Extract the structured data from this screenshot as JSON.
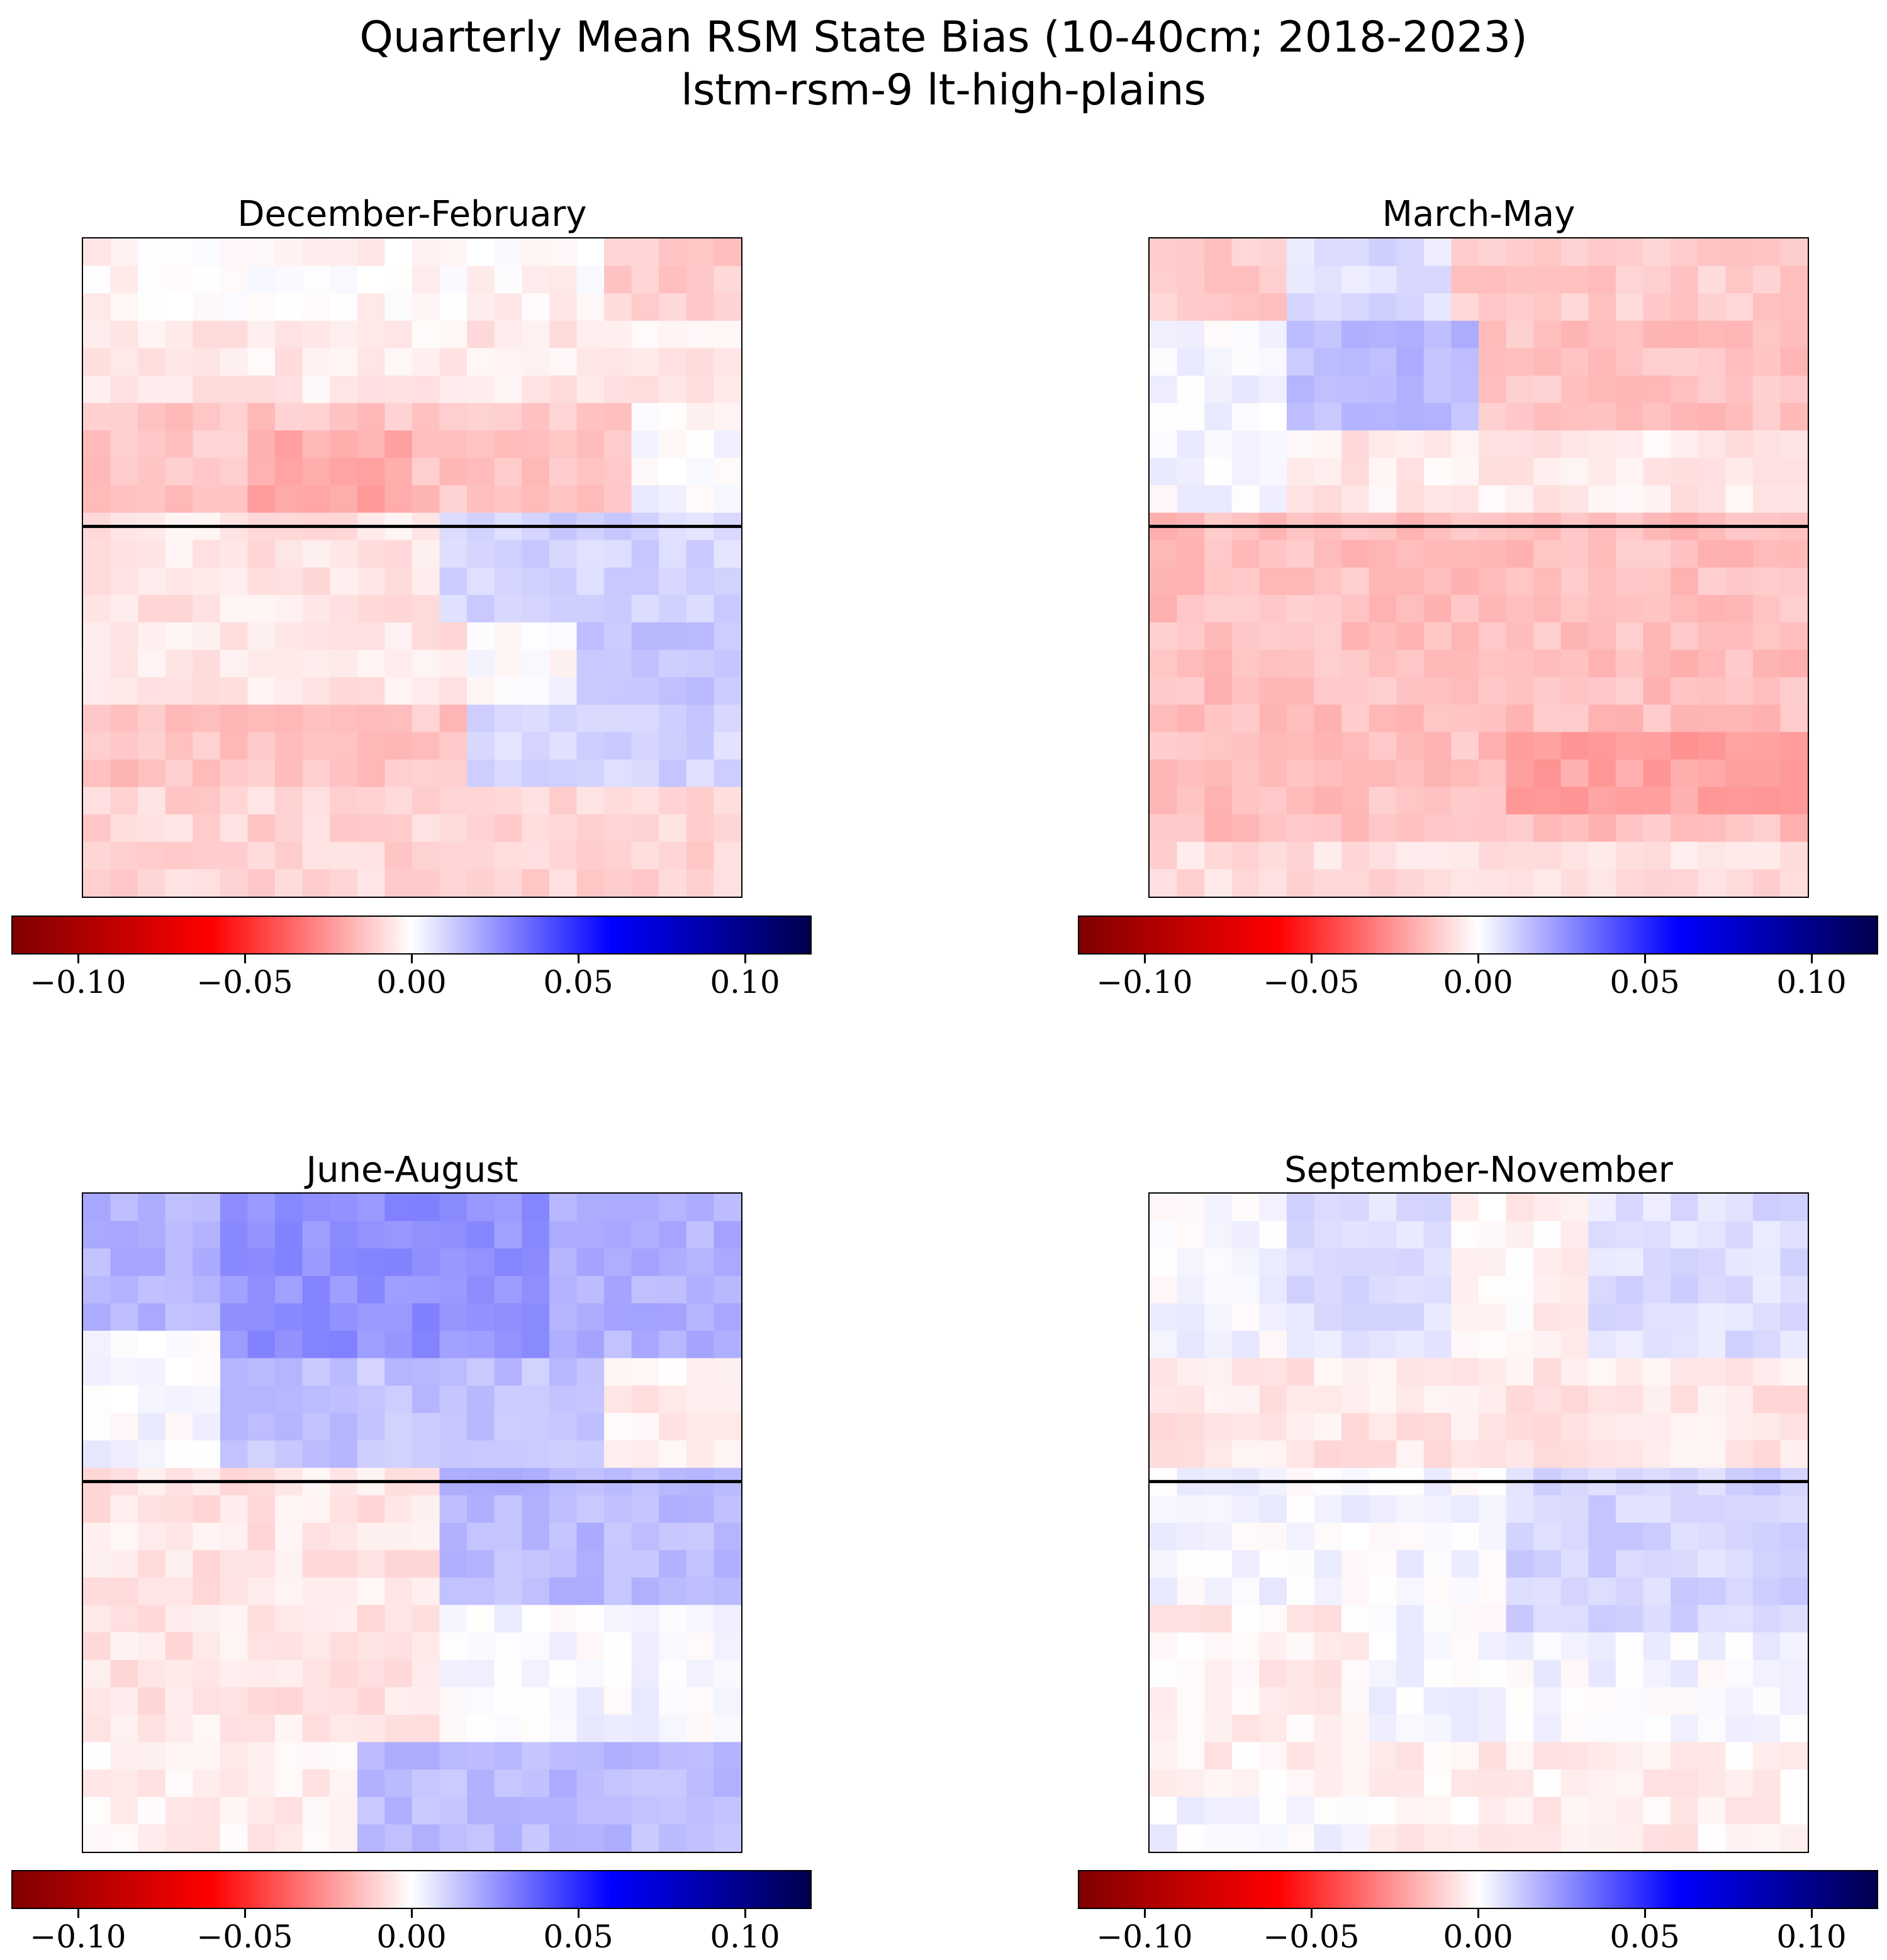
{
  "figure": {
    "title_line1": "Quarterly Mean RSM State Bias (10-40cm; 2018-2023)",
    "title_line2": "lstm-rsm-9 lt-high-plains"
  },
  "colormap": {
    "name": "seismic_r",
    "vmin": -0.12,
    "vmax": 0.12,
    "stops": [
      "#7f0000",
      "#ff0000",
      "#ffffff",
      "#0000ff",
      "#00004d"
    ],
    "divider_line_color": "#000000"
  },
  "colorbar_ticks": [
    "−0.10",
    "−0.05",
    "0.00",
    "0.05",
    "0.10"
  ],
  "colorbar_tick_values": [
    -0.1,
    -0.05,
    0.0,
    0.05,
    0.1
  ],
  "chart_data": [
    {
      "type": "heatmap",
      "title": "December-February",
      "zlim": [
        -0.12,
        0.12
      ],
      "grid": false,
      "nx": 24,
      "ny": 24,
      "divider_row": 10.5,
      "regions": [
        {
          "x": [
            0,
            24
          ],
          "y": [
            0,
            3
          ],
          "value": -0.002
        },
        {
          "x": [
            19,
            24
          ],
          "y": [
            0,
            3
          ],
          "value": -0.012
        },
        {
          "x": [
            0,
            24
          ],
          "y": [
            3,
            6
          ],
          "value": -0.005
        },
        {
          "x": [
            0,
            20
          ],
          "y": [
            6,
            10.5
          ],
          "value": -0.014
        },
        {
          "x": [
            6,
            12
          ],
          "y": [
            7,
            10.5
          ],
          "value": -0.02
        },
        {
          "x": [
            20,
            24
          ],
          "y": [
            8,
            10.5
          ],
          "value": 0.002
        },
        {
          "x": [
            0,
            14
          ],
          "y": [
            10.5,
            17
          ],
          "value": -0.006
        },
        {
          "x": [
            13,
            24
          ],
          "y": [
            10.5,
            14
          ],
          "value": 0.01
        },
        {
          "x": [
            18,
            24
          ],
          "y": [
            14,
            17
          ],
          "value": 0.014
        },
        {
          "x": [
            0,
            14
          ],
          "y": [
            17,
            20
          ],
          "value": -0.014
        },
        {
          "x": [
            14,
            24
          ],
          "y": [
            17,
            20
          ],
          "value": 0.01
        },
        {
          "x": [
            0,
            24
          ],
          "y": [
            20,
            24
          ],
          "value": -0.01
        }
      ]
    },
    {
      "type": "heatmap",
      "title": "March-May",
      "zlim": [
        -0.12,
        0.12
      ],
      "grid": false,
      "nx": 24,
      "ny": 24,
      "divider_row": 10.5,
      "regions": [
        {
          "x": [
            0,
            24
          ],
          "y": [
            0,
            3
          ],
          "value": -0.012
        },
        {
          "x": [
            5,
            11
          ],
          "y": [
            0,
            3
          ],
          "value": 0.008
        },
        {
          "x": [
            0,
            5
          ],
          "y": [
            3,
            10.5
          ],
          "value": 0.002
        },
        {
          "x": [
            5,
            12
          ],
          "y": [
            3,
            7
          ],
          "value": 0.016
        },
        {
          "x": [
            12,
            24
          ],
          "y": [
            3,
            8
          ],
          "value": -0.014
        },
        {
          "x": [
            5,
            24
          ],
          "y": [
            7,
            10.5
          ],
          "value": -0.005
        },
        {
          "x": [
            0,
            24
          ],
          "y": [
            10.5,
            24
          ],
          "value": -0.015
        },
        {
          "x": [
            13,
            24
          ],
          "y": [
            18,
            21
          ],
          "value": -0.022
        },
        {
          "x": [
            0,
            24
          ],
          "y": [
            22,
            24
          ],
          "value": -0.008
        }
      ]
    },
    {
      "type": "heatmap",
      "title": "June-August",
      "zlim": [
        -0.12,
        0.12
      ],
      "grid": false,
      "nx": 24,
      "ny": 24,
      "divider_row": 10.5,
      "regions": [
        {
          "x": [
            0,
            24
          ],
          "y": [
            0,
            6
          ],
          "value": 0.018
        },
        {
          "x": [
            5,
            17
          ],
          "y": [
            0,
            6
          ],
          "value": 0.026
        },
        {
          "x": [
            0,
            5
          ],
          "y": [
            5,
            10.5
          ],
          "value": 0.002
        },
        {
          "x": [
            5,
            19
          ],
          "y": [
            6,
            10.5
          ],
          "value": 0.014
        },
        {
          "x": [
            19,
            24
          ],
          "y": [
            6,
            10.5
          ],
          "value": -0.004
        },
        {
          "x": [
            0,
            13
          ],
          "y": [
            10.5,
            20
          ],
          "value": -0.006
        },
        {
          "x": [
            13,
            24
          ],
          "y": [
            10.5,
            15
          ],
          "value": 0.016
        },
        {
          "x": [
            13,
            24
          ],
          "y": [
            15,
            20
          ],
          "value": 0.002
        },
        {
          "x": [
            0,
            10
          ],
          "y": [
            20,
            24
          ],
          "value": -0.004
        },
        {
          "x": [
            10,
            24
          ],
          "y": [
            20,
            24
          ],
          "value": 0.016
        }
      ]
    },
    {
      "type": "heatmap",
      "title": "September-November",
      "zlim": [
        -0.12,
        0.12
      ],
      "grid": false,
      "nx": 24,
      "ny": 24,
      "divider_row": 10.5,
      "regions": [
        {
          "x": [
            0,
            24
          ],
          "y": [
            0,
            6
          ],
          "value": 0.008
        },
        {
          "x": [
            0,
            5
          ],
          "y": [
            0,
            6
          ],
          "value": 0.002
        },
        {
          "x": [
            11,
            16
          ],
          "y": [
            0,
            6
          ],
          "value": -0.003
        },
        {
          "x": [
            0,
            24
          ],
          "y": [
            6,
            10.5
          ],
          "value": -0.006
        },
        {
          "x": [
            0,
            24
          ],
          "y": [
            10.5,
            24
          ],
          "value": 0.002
        },
        {
          "x": [
            13,
            24
          ],
          "y": [
            10.5,
            16
          ],
          "value": 0.01
        },
        {
          "x": [
            0,
            8
          ],
          "y": [
            15,
            22
          ],
          "value": -0.004
        },
        {
          "x": [
            8,
            24
          ],
          "y": [
            20,
            24
          ],
          "value": -0.004
        }
      ]
    }
  ]
}
